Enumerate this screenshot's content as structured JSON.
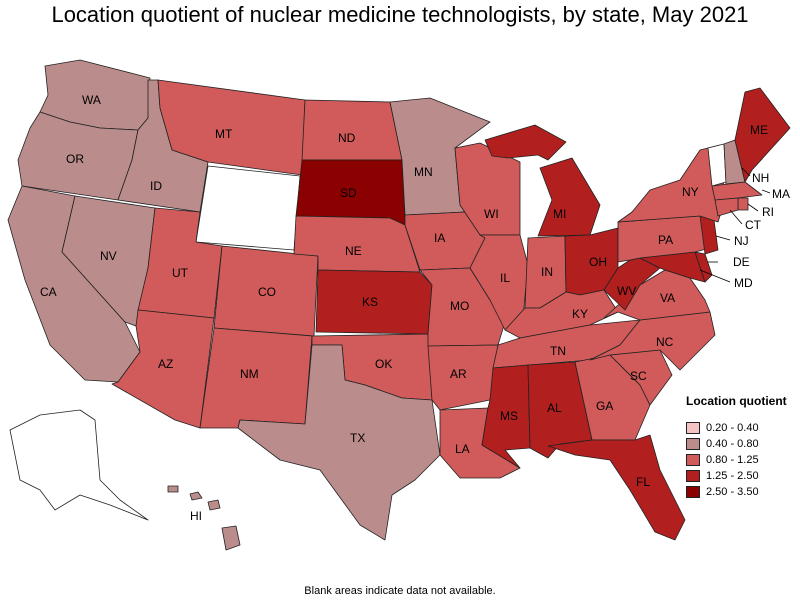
{
  "title": "Location quotient of nuclear medicine technologists, by state, May 2021",
  "footnote": "Blank areas indicate data not available.",
  "legend": {
    "title": "Location quotient",
    "items": [
      {
        "label": "0.20 - 0.40",
        "color": "#f4c4c4"
      },
      {
        "label": "0.40 - 0.80",
        "color": "#bb8c8c"
      },
      {
        "label": "0.80 - 1.25",
        "color": "#d15a5a"
      },
      {
        "label": "1.25 - 2.50",
        "color": "#b21f1f"
      },
      {
        "label": "2.50 - 3.50",
        "color": "#8b0000"
      }
    ]
  },
  "no_data_color": "#ffffff",
  "states": {
    "WA": {
      "label": "WA",
      "class": 1
    },
    "OR": {
      "label": "OR",
      "class": 1
    },
    "CA": {
      "label": "CA",
      "class": 1
    },
    "NV": {
      "label": "NV",
      "class": 1
    },
    "ID": {
      "label": "ID",
      "class": 1
    },
    "MT": {
      "label": "MT",
      "class": 2
    },
    "WY": {
      "label": "",
      "class": null
    },
    "UT": {
      "label": "UT",
      "class": 2
    },
    "AZ": {
      "label": "AZ",
      "class": 2
    },
    "CO": {
      "label": "CO",
      "class": 2
    },
    "NM": {
      "label": "NM",
      "class": 2
    },
    "ND": {
      "label": "ND",
      "class": 2
    },
    "SD": {
      "label": "SD",
      "class": 4
    },
    "NE": {
      "label": "NE",
      "class": 2
    },
    "KS": {
      "label": "KS",
      "class": 3
    },
    "OK": {
      "label": "OK",
      "class": 2
    },
    "TX": {
      "label": "TX",
      "class": 1
    },
    "MN": {
      "label": "MN",
      "class": 1
    },
    "IA": {
      "label": "IA",
      "class": 2
    },
    "MO": {
      "label": "MO",
      "class": 2
    },
    "AR": {
      "label": "AR",
      "class": 2
    },
    "LA": {
      "label": "LA",
      "class": 2
    },
    "WI": {
      "label": "WI",
      "class": 2
    },
    "IL": {
      "label": "IL",
      "class": 2
    },
    "MI": {
      "label": "MI",
      "class": 3
    },
    "IN": {
      "label": "IN",
      "class": 2
    },
    "OH": {
      "label": "OH",
      "class": 3
    },
    "KY": {
      "label": "KY",
      "class": 2
    },
    "TN": {
      "label": "TN",
      "class": 2
    },
    "MS": {
      "label": "MS",
      "class": 3
    },
    "AL": {
      "label": "AL",
      "class": 3
    },
    "GA": {
      "label": "GA",
      "class": 2
    },
    "FL": {
      "label": "FL",
      "class": 3
    },
    "SC": {
      "label": "SC",
      "class": 2
    },
    "NC": {
      "label": "NC",
      "class": 2
    },
    "VA": {
      "label": "VA",
      "class": 2
    },
    "WV": {
      "label": "WV",
      "class": 3
    },
    "PA": {
      "label": "PA",
      "class": 2
    },
    "NY": {
      "label": "NY",
      "class": 2
    },
    "VT": {
      "label": "",
      "class": null
    },
    "NH": {
      "label": "NH",
      "class": 1
    },
    "ME": {
      "label": "ME",
      "class": 3
    },
    "MA": {
      "label": "MA",
      "class": 2
    },
    "RI": {
      "label": "RI",
      "class": 2
    },
    "CT": {
      "label": "CT",
      "class": 2
    },
    "NJ": {
      "label": "NJ",
      "class": 3
    },
    "DE": {
      "label": "DE",
      "class": 3
    },
    "MD": {
      "label": "MD",
      "class": 3
    },
    "AK": {
      "label": "",
      "class": null
    },
    "HI": {
      "label": "HI",
      "class": 1
    }
  }
}
